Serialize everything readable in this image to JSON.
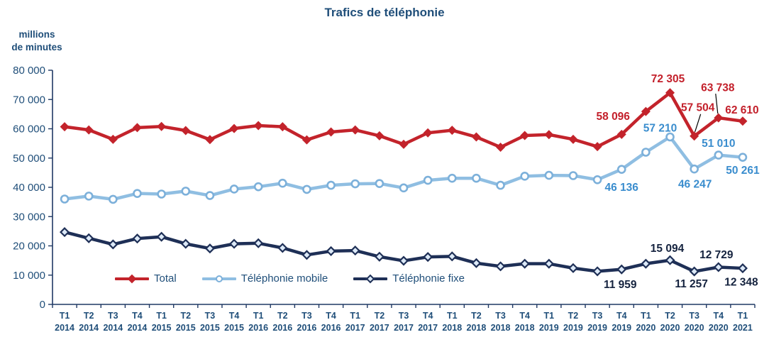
{
  "header": {
    "unit_line1": "millions",
    "unit_line2": "de minutes"
  },
  "colors": {
    "title_text": "#1F4E79",
    "axis": "#1F3864",
    "axis_tick_text": "#1F4E79",
    "background": "#FFFFFF",
    "leader_line": "#000000"
  },
  "chart_data": {
    "type": "line",
    "title": "Trafics de téléphonie",
    "ylabel": "millions de minutes",
    "xlabel": "",
    "ylim": [
      0,
      80000
    ],
    "grid": false,
    "legend_position": "bottom-inside",
    "y_ticks": [
      {
        "v": 0,
        "label": "0"
      },
      {
        "v": 10000,
        "label": "10 000"
      },
      {
        "v": 20000,
        "label": "20 000"
      },
      {
        "v": 30000,
        "label": "30 000"
      },
      {
        "v": 40000,
        "label": "40 000"
      },
      {
        "v": 50000,
        "label": "50 000"
      },
      {
        "v": 60000,
        "label": "60 000"
      },
      {
        "v": 70000,
        "label": "70 000"
      },
      {
        "v": 80000,
        "label": "80 000"
      }
    ],
    "categories": [
      {
        "q": "T1",
        "year": "2014"
      },
      {
        "q": "T2",
        "year": "2014"
      },
      {
        "q": "T3",
        "year": "2014"
      },
      {
        "q": "T4",
        "year": "2014"
      },
      {
        "q": "T1",
        "year": "2015"
      },
      {
        "q": "T2",
        "year": "2015"
      },
      {
        "q": "T3",
        "year": "2015"
      },
      {
        "q": "T4",
        "year": "2015"
      },
      {
        "q": "T1",
        "year": "2016"
      },
      {
        "q": "T2",
        "year": "2016"
      },
      {
        "q": "T3",
        "year": "2016"
      },
      {
        "q": "T4",
        "year": "2016"
      },
      {
        "q": "T1",
        "year": "2017"
      },
      {
        "q": "T2",
        "year": "2017"
      },
      {
        "q": "T3",
        "year": "2017"
      },
      {
        "q": "T4",
        "year": "2017"
      },
      {
        "q": "T1",
        "year": "2018"
      },
      {
        "q": "T2",
        "year": "2018"
      },
      {
        "q": "T3",
        "year": "2018"
      },
      {
        "q": "T4",
        "year": "2018"
      },
      {
        "q": "T1",
        "year": "2019"
      },
      {
        "q": "T2",
        "year": "2019"
      },
      {
        "q": "T3",
        "year": "2019"
      },
      {
        "q": "T4",
        "year": "2019"
      },
      {
        "q": "T1",
        "year": "2020"
      },
      {
        "q": "T2",
        "year": "2020"
      },
      {
        "q": "T3",
        "year": "2020"
      },
      {
        "q": "T4",
        "year": "2020"
      },
      {
        "q": "T1",
        "year": "2021"
      }
    ],
    "series": [
      {
        "name": "Total",
        "color": "#C3232B",
        "label_color": "#C3202B",
        "marker": "diamond-filled",
        "values": [
          60700,
          59600,
          56400,
          60400,
          60800,
          59400,
          56300,
          60100,
          61100,
          60700,
          56200,
          58900,
          59600,
          57600,
          54700,
          58600,
          59500,
          57200,
          53700,
          57700,
          58000,
          56400,
          53900,
          58096,
          65900,
          72305,
          57504,
          63738,
          62610
        ],
        "point_labels": [
          {
            "i": 23,
            "text": "58 096",
            "dx": -12,
            "dy": -26
          },
          {
            "i": 25,
            "text": "72 305",
            "dx": -3,
            "dy": -20
          },
          {
            "i": 26,
            "text": "57 504",
            "dx": 5,
            "dy": -41,
            "leader": [
              9,
              -31,
              1,
              -6
            ]
          },
          {
            "i": 27,
            "text": "63 738",
            "dx": -1,
            "dy": -43,
            "leader": [
              -4,
              -34,
              -1,
              -6
            ]
          },
          {
            "i": 28,
            "text": "62 610",
            "dx": -1,
            "dy": -16
          }
        ]
      },
      {
        "name": "Téléphonie mobile",
        "color": "#8FBEE2",
        "marker_stroke": "#7CB0DA",
        "marker_fill": "#FFFFFF",
        "label_color": "#3A8DCE",
        "marker": "circle-open",
        "values": [
          36000,
          37000,
          35900,
          37900,
          37700,
          38700,
          37200,
          39400,
          40200,
          41400,
          39300,
          40700,
          41200,
          41300,
          39800,
          42400,
          43100,
          43100,
          40700,
          43800,
          44100,
          44000,
          42600,
          46136,
          52000,
          57210,
          46247,
          51010,
          50261
        ],
        "point_labels": [
          {
            "i": 23,
            "text": "46 136",
            "dx": 0,
            "dy": 25
          },
          {
            "i": 25,
            "text": "57 210",
            "dx": -14,
            "dy": -13
          },
          {
            "i": 26,
            "text": "46 247",
            "dx": 1,
            "dy": 21
          },
          {
            "i": 27,
            "text": "51 010",
            "dx": 0,
            "dy": -17
          },
          {
            "i": 28,
            "text": "50 261",
            "dx": 0,
            "dy": 18
          }
        ]
      },
      {
        "name": "Téléphonie fixe",
        "color": "#1E2F56",
        "marker_stroke": "#1E2F56",
        "marker_fill": "#DCE9F7",
        "label_color": "#15233F",
        "marker": "diamond-open",
        "values": [
          24700,
          22600,
          20500,
          22500,
          23100,
          20700,
          19100,
          20700,
          20900,
          19300,
          16900,
          18200,
          18400,
          16300,
          14900,
          16200,
          16400,
          14100,
          13000,
          13900,
          13900,
          12400,
          11300,
          11959,
          13900,
          15094,
          11257,
          12729,
          12348
        ],
        "point_labels": [
          {
            "i": 23,
            "text": "11 959",
            "dx": -2,
            "dy": 21
          },
          {
            "i": 25,
            "text": "15 094",
            "dx": -4,
            "dy": -17
          },
          {
            "i": 26,
            "text": "11 257",
            "dx": -4,
            "dy": 17
          },
          {
            "i": 27,
            "text": "12 729",
            "dx": -3,
            "dy": -18
          },
          {
            "i": 28,
            "text": "12 348",
            "dx": -2,
            "dy": 19
          }
        ]
      }
    ]
  }
}
